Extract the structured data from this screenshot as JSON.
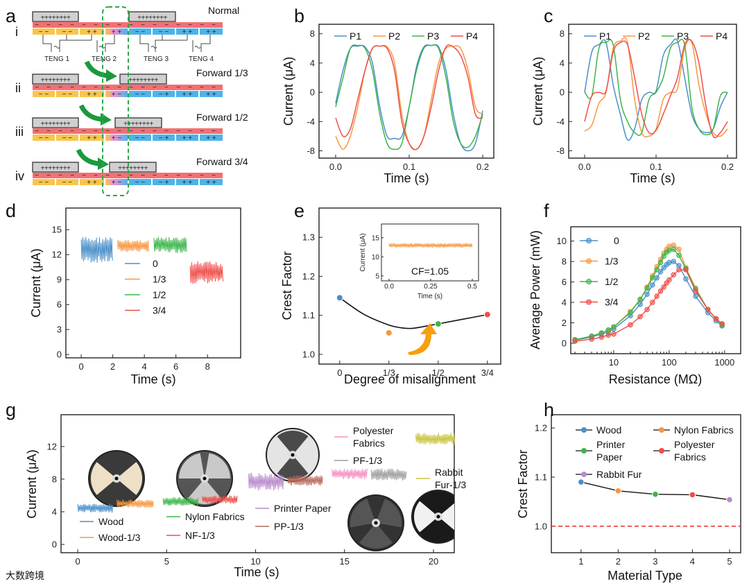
{
  "panels": {
    "labels": [
      "a",
      "b",
      "c",
      "d",
      "e",
      "f",
      "g",
      "h"
    ]
  },
  "watermark": "大数跨境",
  "diagram": {
    "electrode_text": "++++++++",
    "minus_sign": "−",
    "tengs": [
      "TENG 1",
      "TENG 2",
      "TENG 3",
      "TENG 4"
    ],
    "stages": [
      {
        "numeral": "i",
        "label": "Normal",
        "lower": [
          "− −",
          "− −",
          "+ +",
          "+ +",
          "− −",
          "− −",
          "+ +",
          "+ +"
        ]
      },
      {
        "numeral": "ii",
        "label": "Forward 1/3",
        "lower": [
          "− −",
          "− −",
          "+ +",
          "+ −",
          "− −",
          "− +",
          "+ +",
          "+ +"
        ]
      },
      {
        "numeral": "iii",
        "label": "Forward 1/2",
        "lower": [
          "− −",
          "− −",
          "+ +",
          "+ −",
          "− −",
          "− +",
          "+ +",
          "+ +"
        ]
      },
      {
        "numeral": "iv",
        "label": "Forward 3/4",
        "lower": [
          "− −",
          "− −",
          "+ +",
          "+ −",
          "− −",
          "− +",
          "+ +",
          "+ +"
        ]
      }
    ],
    "colors": {
      "electrode": "#d0d0d0",
      "negative": "#f46f73",
      "yellow": "#f9c54c",
      "pink": "#e98fd6",
      "blue": "#4db3ea",
      "arrow": "#1a9a3c",
      "dash": "#2aa84a"
    }
  },
  "chart_data": [
    {
      "id": "b",
      "type": "line",
      "xlabel": "Time (s)",
      "ylabel": "Current (μA)",
      "xlim": [
        -0.0226,
        0.215
      ],
      "ylim": [
        -9.0,
        9.3
      ],
      "xticks": [
        0,
        0.1,
        0.2
      ],
      "xtick_labels": [
        "0.0",
        "0.1",
        "0.2"
      ],
      "yticks": [
        -8,
        -4,
        0,
        4,
        8
      ],
      "ytick_labels": [
        "-8",
        "-4",
        "0",
        "4",
        "8"
      ],
      "legend_position": "top",
      "x": [
        0,
        0.01,
        0.02,
        0.03,
        0.04,
        0.05,
        0.06,
        0.07,
        0.08,
        0.09,
        0.1,
        0.11,
        0.12,
        0.13,
        0.14,
        0.15,
        0.16,
        0.17,
        0.18,
        0.19,
        0.2
      ],
      "series": [
        {
          "name": "P1",
          "color": "#4a8fc9",
          "values": [
            -1.5,
            3,
            6,
            6.3,
            6.2,
            4,
            -2,
            -6,
            -6.3,
            -6,
            -2,
            3.5,
            6.2,
            6.4,
            6.2,
            3,
            -3,
            -7,
            -8,
            -7,
            -2.5
          ]
        },
        {
          "name": "P2",
          "color": "#f7973f",
          "values": [
            -6,
            -7.8,
            -6,
            -2,
            3,
            6,
            6.3,
            6.2,
            4,
            -3,
            -7,
            -7.8,
            -6,
            -1,
            4,
            6,
            6.3,
            6,
            3,
            -2,
            -3
          ]
        },
        {
          "name": "P3",
          "color": "#3cb54a",
          "values": [
            -2,
            2,
            6,
            6.4,
            6,
            3,
            -3,
            -7,
            -7.8,
            -7,
            -2,
            3,
            6,
            6.4,
            6,
            2,
            -4,
            -7,
            -7.5,
            -6,
            -3
          ]
        },
        {
          "name": "P4",
          "color": "#ef4e4a",
          "values": [
            -3.5,
            -6,
            -5,
            -1,
            3,
            6,
            6.3,
            6,
            3,
            -4,
            -7,
            -7.8,
            -6,
            -2,
            3,
            6.2,
            6.2,
            5,
            2,
            -3,
            -3.5
          ]
        }
      ]
    },
    {
      "id": "c",
      "type": "line",
      "xlabel": "Time (s)",
      "ylabel": "Current (μA)",
      "xlim": [
        -0.0223,
        0.2126
      ],
      "ylim": [
        -9.0,
        9.3
      ],
      "xticks": [
        0,
        0.1,
        0.2
      ],
      "xtick_labels": [
        "0.0",
        "0.1",
        "0.2"
      ],
      "yticks": [
        -8,
        -4,
        0,
        4,
        8
      ],
      "ytick_labels": [
        "-8",
        "-4",
        "0",
        "4",
        "8"
      ],
      "legend_position": "top",
      "x": [
        0,
        0.01,
        0.02,
        0.03,
        0.04,
        0.05,
        0.06,
        0.07,
        0.08,
        0.09,
        0.1,
        0.11,
        0.12,
        0.13,
        0.14,
        0.15,
        0.16,
        0.17,
        0.18,
        0.19,
        0.2
      ],
      "series": [
        {
          "name": "P1",
          "color": "#4a8fc9",
          "values": [
            0,
            5.5,
            6.5,
            6.8,
            1,
            -3,
            -6.5,
            -5,
            -1,
            0,
            0.2,
            5,
            6.5,
            7,
            2,
            -3,
            -5,
            -5.5,
            -5,
            -2,
            0
          ]
        },
        {
          "name": "P2",
          "color": "#f7973f",
          "values": [
            -5.3,
            -4.5,
            -1.5,
            0,
            6,
            7,
            6.8,
            -1,
            -5.5,
            -6,
            -5,
            -1,
            0,
            0.5,
            6,
            6.8,
            1,
            -3,
            -5.5,
            -6,
            -5
          ]
        },
        {
          "name": "P3",
          "color": "#3cb54a",
          "values": [
            0,
            -0.5,
            6,
            6.8,
            6.5,
            -1,
            -4,
            -5.5,
            -5.5,
            -1,
            0,
            2,
            6,
            6.8,
            6.5,
            -2,
            -5,
            -5.8,
            -5,
            -0.5,
            0
          ]
        },
        {
          "name": "P4",
          "color": "#ef4e4a",
          "values": [
            -4,
            -0.5,
            0,
            0.2,
            5.5,
            6.8,
            6.5,
            2,
            -3,
            -5.5,
            -5.2,
            -3,
            -0.5,
            2,
            6.5,
            7,
            4,
            -2,
            -6,
            -5.5,
            -4
          ]
        }
      ]
    },
    {
      "id": "d",
      "type": "line",
      "xlabel": "Time (s)",
      "ylabel": "Current (μA)",
      "xlim": [
        -0.97,
        10.1
      ],
      "ylim": [
        -0.4,
        17.6
      ],
      "xticks": [
        0,
        2,
        4,
        6,
        8
      ],
      "xtick_labels": [
        "0",
        "2",
        "4",
        "6",
        "8"
      ],
      "yticks": [
        0,
        3,
        6,
        9,
        12,
        15
      ],
      "ytick_labels": [
        "0",
        "3",
        "6",
        "9",
        "12",
        "15"
      ],
      "legend_position": "center-left",
      "series": [
        {
          "name": "0",
          "color": "#4a8fc9",
          "t": [
            0,
            2.0
          ],
          "range": [
            11.0,
            14.2
          ]
        },
        {
          "name": "1/3",
          "color": "#f7973f",
          "t": [
            2.3,
            4.3
          ],
          "range": [
            12.3,
            13.8
          ]
        },
        {
          "name": "1/2",
          "color": "#3cb54a",
          "t": [
            4.6,
            6.7
          ],
          "range": [
            12.2,
            14.1
          ]
        },
        {
          "name": "3/4",
          "color": "#ef4e4a",
          "t": [
            6.9,
            9.0
          ],
          "range": [
            8.5,
            11.2
          ]
        }
      ]
    },
    {
      "id": "e",
      "type": "scatter",
      "xlabel": "Degree of misalignment",
      "ylabel": "Crest Factor",
      "categories": [
        "0",
        "1/3",
        "1/2",
        "3/4"
      ],
      "xlim": [
        -0.42,
        3.27
      ],
      "ylim": [
        0.975,
        1.375
      ],
      "yticks": [
        1.0,
        1.1,
        1.2,
        1.3
      ],
      "ytick_labels": [
        "1.0",
        "1.1",
        "1.2",
        "1.3"
      ],
      "values": [
        1.145,
        1.055,
        1.078,
        1.102
      ],
      "colors": [
        "#4a8fc9",
        "#f7973f",
        "#3cb54a",
        "#ef4e4a"
      ],
      "fit_curve": {
        "x": [
          0,
          0.5,
          1,
          1.25,
          1.5,
          2,
          2.5,
          3
        ],
        "y": [
          1.145,
          1.102,
          1.075,
          1.068,
          1.067,
          1.078,
          1.09,
          1.102
        ]
      },
      "arrow_color": "#f5a011",
      "inset": {
        "type": "line",
        "xlabel": "Time (s)",
        "ylabel": "Current (μA)",
        "xlim": [
          -0.046,
          0.5375
        ],
        "ylim": [
          3.7,
          18.6
        ],
        "xticks": [
          0,
          0.25,
          0.5
        ],
        "xtick_labels": [
          "0.0",
          "0.25",
          "0.5"
        ],
        "yticks": [
          5,
          10,
          15
        ],
        "ytick_labels": [
          "5",
          "10",
          "15"
        ],
        "series": {
          "color": "#f7973f",
          "t": [
            0,
            0.5
          ],
          "range": [
            12.4,
            13.6
          ]
        },
        "annotation": "CF=1.05"
      }
    },
    {
      "id": "f",
      "type": "line",
      "xlabel": "Resistance (MΩ)",
      "ylabel": "Average Power (mW)",
      "xscale": "log",
      "xlim": [
        1.68,
        1950
      ],
      "ylim": [
        -1.02,
        11.4
      ],
      "xticks": [
        10,
        100,
        1000
      ],
      "xtick_labels": [
        "10",
        "100",
        "1000"
      ],
      "yticks": [
        0,
        2,
        4,
        6,
        8,
        10
      ],
      "ytick_labels": [
        "0",
        "2",
        "4",
        "6",
        "8",
        "10"
      ],
      "legend_position": "top-left",
      "x": [
        2,
        4,
        6,
        8,
        10,
        20,
        30,
        40,
        50,
        60,
        70,
        80,
        90,
        100,
        120,
        150,
        200,
        300,
        500,
        700,
        900
      ],
      "series": [
        {
          "name": "0",
          "color": "#4a8fc9",
          "values": [
            0.3,
            0.6,
            0.9,
            1.1,
            1.4,
            2.7,
            3.8,
            4.8,
            5.7,
            6.4,
            7.0,
            7.4,
            7.7,
            7.9,
            8.0,
            7.6,
            6.3,
            4.6,
            3.0,
            2.2,
            1.7
          ]
        },
        {
          "name": "1/3",
          "color": "#f7973f",
          "values": [
            0.35,
            0.7,
            1.0,
            1.3,
            1.6,
            3.1,
            4.3,
            5.5,
            6.6,
            7.5,
            8.2,
            8.8,
            9.2,
            9.5,
            9.6,
            9.2,
            7.4,
            5.4,
            3.3,
            2.4,
            1.9
          ]
        },
        {
          "name": "1/2",
          "color": "#3cb54a",
          "values": [
            0.35,
            0.7,
            1.0,
            1.3,
            1.6,
            3.0,
            4.3,
            5.4,
            6.4,
            7.2,
            7.9,
            8.5,
            8.9,
            9.1,
            9.2,
            8.6,
            7.3,
            5.3,
            3.3,
            2.4,
            1.8
          ]
        },
        {
          "name": "3/4",
          "color": "#ef4e4a",
          "values": [
            0.2,
            0.4,
            0.6,
            0.8,
            0.9,
            1.8,
            2.6,
            3.3,
            4.0,
            4.6,
            5.1,
            5.5,
            5.9,
            6.2,
            6.7,
            7.2,
            7.2,
            5.1,
            3.3,
            2.4,
            1.9
          ]
        }
      ]
    },
    {
      "id": "g",
      "type": "line",
      "xlabel": "Time (s)",
      "ylabel": "Current (μA)",
      "xlim": [
        -0.94,
        21.17
      ],
      "ylim": [
        -1.02,
        15.9
      ],
      "xticks": [
        0,
        5,
        10,
        15,
        20
      ],
      "xtick_labels": [
        "0",
        "5",
        "10",
        "15",
        "20"
      ],
      "yticks": [
        0,
        4,
        8,
        12
      ],
      "ytick_labels": [
        "0",
        "4",
        "8",
        "12"
      ],
      "series": [
        {
          "name": "Wood",
          "color": "#4a8fc9",
          "t": [
            0,
            2.0
          ],
          "range": [
            3.9,
            5.0
          ]
        },
        {
          "name": "Wood-1/3",
          "color": "#f7973f",
          "t": [
            2.2,
            4.3
          ],
          "range": [
            4.5,
            5.5
          ]
        },
        {
          "name": "Nylon Fabrics",
          "color": "#3cb54a",
          "t": [
            4.8,
            6.8
          ],
          "range": [
            4.7,
            5.8
          ]
        },
        {
          "name": "NF-1/3",
          "color": "#ef4e4a",
          "t": [
            7.0,
            9.0
          ],
          "range": [
            5.0,
            6.0
          ]
        },
        {
          "name": "Printer Paper",
          "color": "#b98acb",
          "t": [
            9.6,
            11.6
          ],
          "range": [
            6.6,
            8.8
          ]
        },
        {
          "name": "PP-1/3",
          "color": "#b5685a",
          "t": [
            11.8,
            13.8
          ],
          "range": [
            7.2,
            8.5
          ]
        },
        {
          "name": "Polyester Fabrics",
          "color": "#f78fc0",
          "t": [
            14.3,
            16.3
          ],
          "range": [
            8.0,
            9.3
          ]
        },
        {
          "name": "PF-1/3",
          "color": "#9e9e9e",
          "t": [
            16.5,
            18.5
          ],
          "range": [
            7.8,
            9.3
          ]
        },
        {
          "name": "Rabbit Fur-1/3",
          "color": "#c8c43c",
          "t": [
            19.0,
            21.2
          ],
          "range": [
            12.2,
            13.7
          ]
        }
      ]
    },
    {
      "id": "h",
      "type": "line",
      "xlabel": "Material Type",
      "ylabel": "Crest Factor",
      "xlim": [
        0.2,
        5.3
      ],
      "ylim": [
        0.946,
        1.227
      ],
      "xticks": [
        1,
        2,
        3,
        4,
        5
      ],
      "xtick_labels": [
        "1",
        "2",
        "3",
        "4",
        "5"
      ],
      "yticks": [
        1.0,
        1.1,
        1.2
      ],
      "ytick_labels": [
        "1.0",
        "1.1",
        "1.2"
      ],
      "x": [
        1,
        2,
        3,
        4,
        5
      ],
      "values": [
        1.09,
        1.072,
        1.065,
        1.064,
        1.054
      ],
      "colors": [
        "#4a8fc9",
        "#f7973f",
        "#3cb54a",
        "#ef4e4a",
        "#b98acb"
      ],
      "reference_line": {
        "y": 1.0,
        "color": "#ee2a2a",
        "style": "dashed"
      },
      "legend": [
        {
          "name": "Wood",
          "color": "#4a8fc9"
        },
        {
          "name": "Printer Paper",
          "color": "#3cb54a"
        },
        {
          "name": "Rabbit Fur",
          "color": "#b98acb"
        },
        {
          "name": "Nylon Fabrics",
          "color": "#f7973f"
        },
        {
          "name": "Polyester Fabrics",
          "color": "#ef4e4a"
        }
      ]
    }
  ]
}
